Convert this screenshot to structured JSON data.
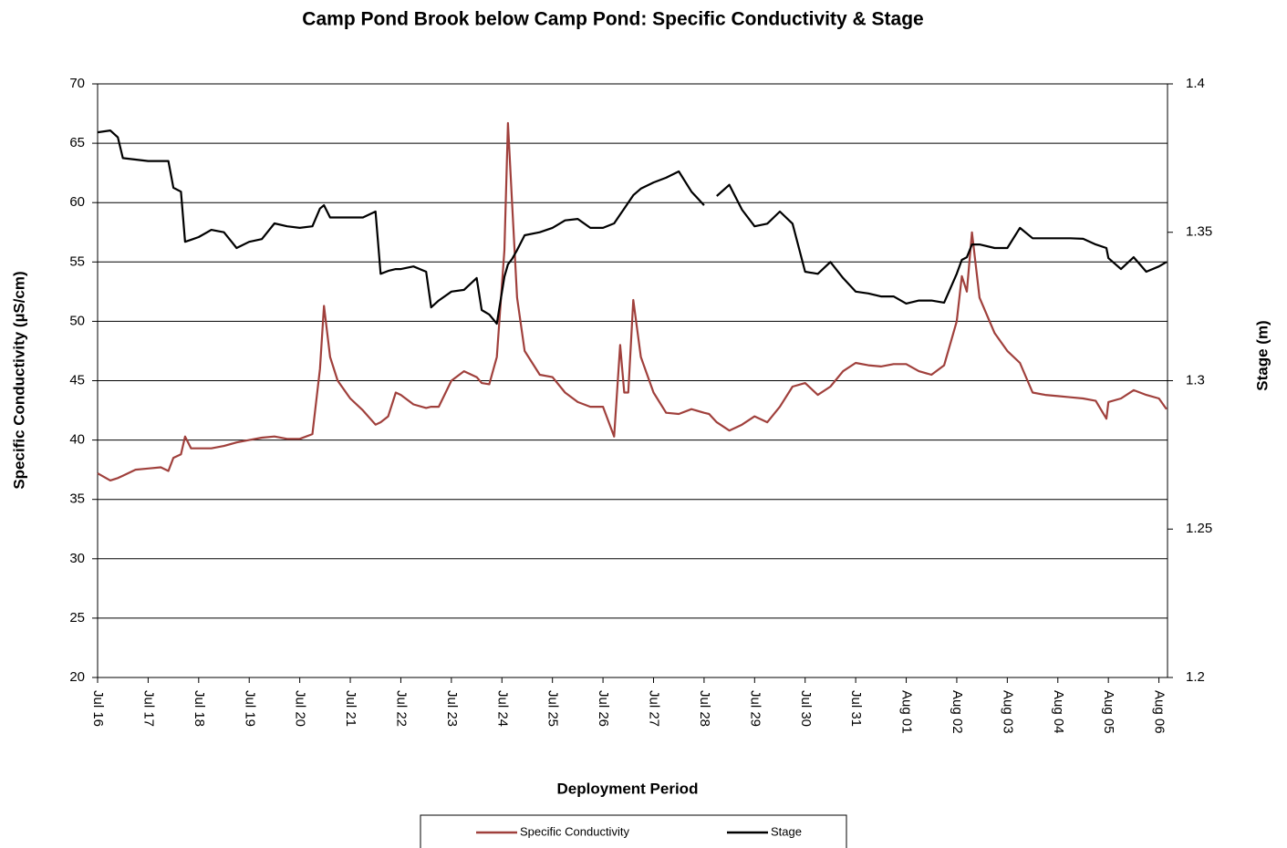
{
  "chart_data": {
    "type": "line",
    "title": "Camp Pond Brook below Camp Pond: Specific Conductivity & Stage",
    "x_label": "Deployment Period",
    "y_label": "Specific Conductivity (µS/cm)",
    "y2_label": "Stage (m)",
    "x": [
      0,
      0.25,
      0.4,
      0.5,
      0.75,
      1.0,
      1.25,
      1.4,
      1.5,
      1.65,
      1.73,
      1.85,
      2.0,
      2.25,
      2.5,
      2.75,
      3.0,
      3.25,
      3.5,
      3.75,
      4.0,
      4.25,
      4.4,
      4.48,
      4.6,
      4.75,
      5.0,
      5.25,
      5.5,
      5.6,
      5.75,
      5.9,
      6.0,
      6.25,
      6.5,
      6.6,
      6.75,
      7.0,
      7.25,
      7.5,
      7.6,
      7.75,
      7.9,
      8.05,
      8.12,
      8.2,
      8.3,
      8.45,
      8.75,
      9.0,
      9.25,
      9.5,
      9.75,
      10.0,
      10.22,
      10.34,
      10.42,
      10.5,
      10.6,
      10.75,
      11.0,
      11.25,
      11.5,
      11.75,
      12.0,
      12.1,
      12.25,
      12.5,
      12.75,
      13.0,
      13.25,
      13.5,
      13.75,
      14.0,
      14.25,
      14.5,
      14.75,
      15.0,
      15.25,
      15.5,
      15.75,
      16.0,
      16.25,
      16.5,
      16.75,
      17.0,
      17.1,
      17.2,
      17.3,
      17.45,
      17.75,
      18.0,
      18.25,
      18.5,
      18.75,
      19.0,
      19.25,
      19.5,
      19.75,
      19.96,
      20.0,
      20.25,
      20.5,
      20.75,
      21.0,
      21.15
    ],
    "series": [
      {
        "name": "Specific Conductivity",
        "color": "#a0403c",
        "axis": "y",
        "values": [
          37.2,
          36.6,
          36.8,
          37.0,
          37.5,
          37.6,
          37.7,
          37.4,
          38.5,
          38.8,
          40.3,
          39.3,
          39.3,
          39.3,
          39.5,
          39.8,
          40.0,
          40.2,
          40.3,
          40.1,
          40.1,
          40.5,
          46,
          51.3,
          47,
          45,
          43.5,
          42.5,
          41.3,
          41.5,
          42,
          44,
          43.8,
          43,
          42.7,
          42.8,
          42.8,
          45,
          45.8,
          45.3,
          44.8,
          44.7,
          47,
          56,
          66.7,
          60,
          52,
          47.5,
          45.5,
          45.3,
          44,
          43.2,
          42.8,
          42.8,
          40.3,
          48,
          44,
          44,
          51.8,
          47,
          44,
          42.3,
          42.2,
          42.6,
          42.3,
          42.2,
          41.5,
          40.8,
          41.3,
          42,
          41.5,
          42.8,
          44.5,
          44.8,
          43.8,
          44.5,
          45.8,
          46.5,
          46.3,
          46.2,
          46.4,
          46.4,
          45.8,
          45.5,
          46.3,
          50,
          53.8,
          52.5,
          57.5,
          52,
          49,
          47.5,
          46.5,
          44,
          43.8,
          43.7,
          43.6,
          43.5,
          43.3,
          41.8,
          43.2,
          43.5,
          44.2,
          43.8,
          43.5,
          42.6
        ]
      },
      {
        "name": "Stage",
        "color": "#000000",
        "axis": "y2",
        "values": [
          1.3837,
          1.3843,
          1.382,
          1.375,
          1.3745,
          1.374,
          1.374,
          1.374,
          1.365,
          1.3637,
          1.3468,
          1.3475,
          1.3484,
          1.3508,
          1.35,
          1.3447,
          1.3468,
          1.3477,
          1.353,
          1.352,
          1.3515,
          1.352,
          1.358,
          1.3591,
          1.355,
          1.355,
          1.355,
          1.355,
          1.357,
          1.336,
          1.337,
          1.3376,
          1.3376,
          1.3385,
          1.3367,
          1.3247,
          1.327,
          1.33,
          1.3306,
          1.3346,
          1.3238,
          1.3223,
          1.3192,
          1.335,
          1.3392,
          1.341,
          1.344,
          1.349,
          1.35,
          1.3515,
          1.354,
          1.3545,
          1.3515,
          1.3515,
          1.353,
          1.356,
          1.358,
          1.36,
          1.3625,
          1.3647,
          1.3668,
          1.3684,
          1.3705,
          1.3637,
          1.3591,
          null,
          1.3622,
          1.366,
          1.3576,
          1.352,
          1.3529,
          1.357,
          1.3529,
          1.3367,
          1.336,
          1.34,
          1.3346,
          1.33,
          1.3294,
          1.3284,
          1.3284,
          1.326,
          1.327,
          1.327,
          1.3263,
          1.336,
          1.3407,
          1.3416,
          1.3459,
          1.3459,
          1.3447,
          1.3447,
          1.3515,
          1.348,
          1.348,
          1.348,
          1.348,
          1.3478,
          1.3459,
          1.3447,
          1.3413,
          1.3376,
          1.3416,
          1.3367,
          1.3385,
          1.34
        ]
      }
    ],
    "xlim": [
      0,
      21.17
    ],
    "xticks": [
      {
        "value": 0,
        "label": "Jul 16"
      },
      {
        "value": 1,
        "label": "Jul 17"
      },
      {
        "value": 2,
        "label": "Jul 18"
      },
      {
        "value": 3,
        "label": "Jul 19"
      },
      {
        "value": 4,
        "label": "Jul 20"
      },
      {
        "value": 5,
        "label": "Jul 21"
      },
      {
        "value": 6,
        "label": "Jul 22"
      },
      {
        "value": 7,
        "label": "Jul 23"
      },
      {
        "value": 8,
        "label": "Jul 24"
      },
      {
        "value": 9,
        "label": "Jul 25"
      },
      {
        "value": 10,
        "label": "Jul 26"
      },
      {
        "value": 11,
        "label": "Jul 27"
      },
      {
        "value": 12,
        "label": "Jul 28"
      },
      {
        "value": 13,
        "label": "Jul 29"
      },
      {
        "value": 14,
        "label": "Jul 30"
      },
      {
        "value": 15,
        "label": "Jul 31"
      },
      {
        "value": 16,
        "label": "Aug 01"
      },
      {
        "value": 17,
        "label": "Aug 02"
      },
      {
        "value": 18,
        "label": "Aug 03"
      },
      {
        "value": 19,
        "label": "Aug 04"
      },
      {
        "value": 20,
        "label": "Aug 05"
      },
      {
        "value": 21,
        "label": "Aug 06"
      }
    ],
    "ylim": [
      20,
      70
    ],
    "yticks": [
      20,
      25,
      30,
      35,
      40,
      45,
      50,
      55,
      60,
      65,
      70
    ],
    "y2lim": [
      1.2,
      1.4
    ],
    "y2ticks": [
      1.2,
      1.25,
      1.3,
      1.35,
      1.4
    ],
    "grid": true,
    "legend": "bottom"
  }
}
